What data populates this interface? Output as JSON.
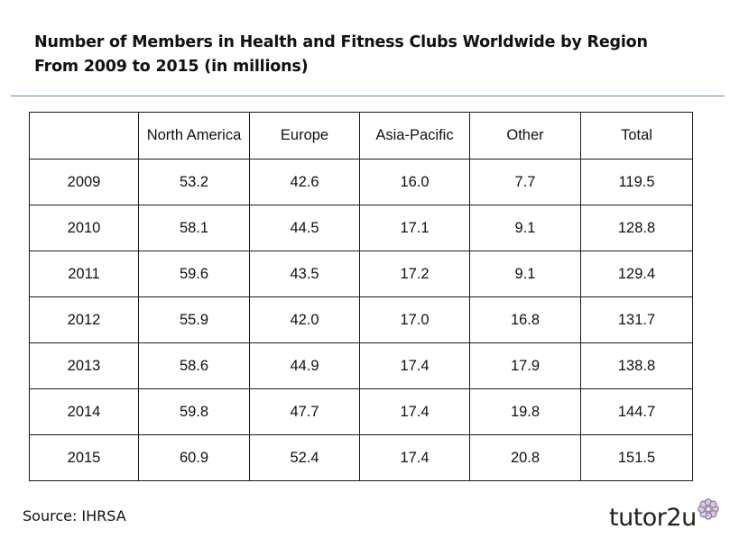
{
  "title": {
    "line1": "Number of Members in Health and Fitness Clubs Worldwide by Region",
    "line2": "From 2009 to 2015 (in millions)"
  },
  "source": "Source: IHRSA",
  "logo": {
    "text": "tutor2u",
    "icon": "flower-icon",
    "flower_color": "#d9c8e8"
  },
  "colors": {
    "rule": "#5a8fb5",
    "border": "#1a1a1a",
    "text": "#111111"
  },
  "chart_data": {
    "type": "table",
    "title": "Number of Members in Health and Fitness Clubs Worldwide by Region From 2009 to 2015 (in millions)",
    "columns": [
      "",
      "North America",
      "Europe",
      "Asia-Pacific",
      "Other",
      "Total"
    ],
    "rows": [
      [
        "2009",
        "53.2",
        "42.6",
        "16.0",
        "7.7",
        "119.5"
      ],
      [
        "2010",
        "58.1",
        "44.5",
        "17.1",
        "9.1",
        "128.8"
      ],
      [
        "2011",
        "59.6",
        "43.5",
        "17.2",
        "9.1",
        "129.4"
      ],
      [
        "2012",
        "55.9",
        "42.0",
        "17.0",
        "16.8",
        "131.7"
      ],
      [
        "2013",
        "58.6",
        "44.9",
        "17.4",
        "17.9",
        "138.8"
      ],
      [
        "2014",
        "59.8",
        "47.7",
        "17.4",
        "19.8",
        "144.7"
      ],
      [
        "2015",
        "60.9",
        "52.4",
        "17.4",
        "20.8",
        "151.5"
      ]
    ]
  }
}
